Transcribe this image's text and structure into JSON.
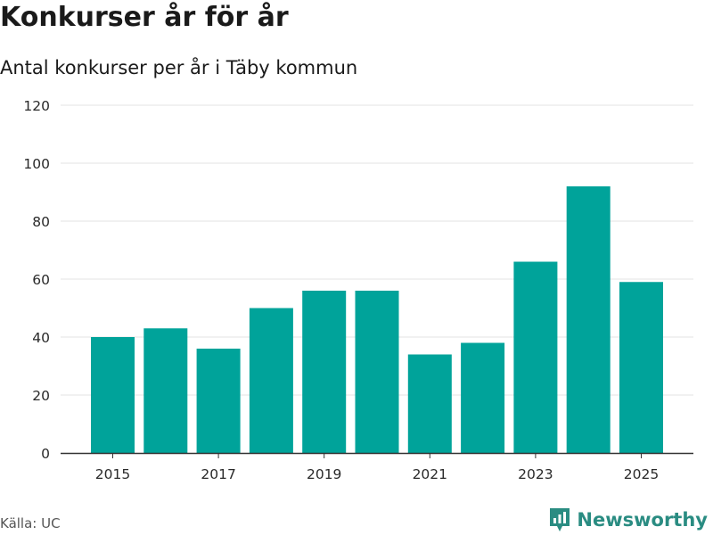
{
  "header": {
    "title": "Konkurser år för år",
    "subtitle": "Antal konkurser per år i Täby kommun"
  },
  "footer": {
    "source": "Källa: UC",
    "brand": "Newsworthy"
  },
  "colors": {
    "bar": "#00a39a",
    "grid": "#e3e3e3",
    "axis": "#333333",
    "brand": "#2a8c82"
  },
  "chart_data": {
    "type": "bar",
    "title": "Konkurser år för år",
    "subtitle": "Antal konkurser per år i Täby kommun",
    "xlabel": "",
    "ylabel": "",
    "categories": [
      "2015",
      "2016",
      "2017",
      "2018",
      "2019",
      "2020",
      "2021",
      "2022",
      "2023",
      "2024",
      "2025"
    ],
    "values": [
      40,
      43,
      36,
      50,
      56,
      56,
      34,
      38,
      66,
      92,
      59
    ],
    "ylim": [
      0,
      120
    ],
    "yticks": [
      0,
      20,
      40,
      60,
      80,
      100,
      120
    ],
    "xtick_labels": [
      "2015",
      "2017",
      "2019",
      "2021",
      "2023",
      "2025"
    ],
    "grid": true,
    "legend": "none"
  }
}
